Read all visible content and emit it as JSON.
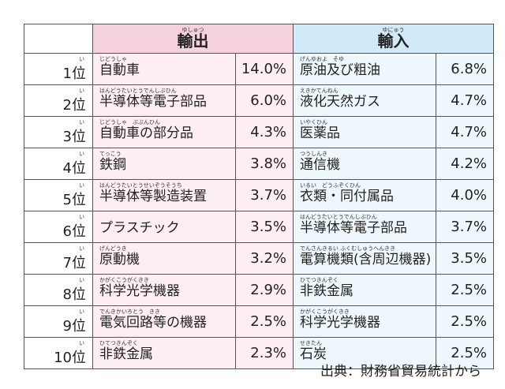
{
  "header": {
    "export": {
      "label": "輸出",
      "reading": "ゆしゅつ"
    },
    "import": {
      "label": "輸入",
      "reading": "ゆにゅう"
    }
  },
  "rows": [
    {
      "rank": "1位",
      "rank_reading": "い",
      "export": {
        "name": "自動車",
        "reading": "じどうしゃ",
        "share": "14.0%"
      },
      "import": {
        "name": "原油及び粗油",
        "reading": "げんゆおよ　そゆ",
        "share": "6.8%"
      }
    },
    {
      "rank": "2位",
      "rank_reading": "い",
      "export": {
        "name": "半導体等電子部品",
        "reading": "はんどうたいとうでんしぶひん",
        "share": "6.0%"
      },
      "import": {
        "name": "液化天然ガス",
        "reading": "えきかてんねん",
        "share": "4.7%"
      }
    },
    {
      "rank": "3位",
      "rank_reading": "い",
      "export": {
        "name": "自動車の部分品",
        "reading": "じどうしゃ　ぶぶんひん",
        "share": "4.3%"
      },
      "import": {
        "name": "医薬品",
        "reading": "いやくひん",
        "share": "4.7%"
      }
    },
    {
      "rank": "4位",
      "rank_reading": "い",
      "export": {
        "name": "鉄鋼",
        "reading": "てっこう",
        "share": "3.8%"
      },
      "import": {
        "name": "通信機",
        "reading": "つうしんき",
        "share": "4.2%"
      }
    },
    {
      "rank": "5位",
      "rank_reading": "い",
      "export": {
        "name": "半導体等製造装置",
        "reading": "はんどうたいとうせいぞうそうち",
        "share": "3.7%"
      },
      "import": {
        "name": "衣類・同付属品",
        "reading": "いるい　どうふぞくひん",
        "share": "4.0%"
      }
    },
    {
      "rank": "6位",
      "rank_reading": "い",
      "export": {
        "name": "プラスチック",
        "share": "3.5%"
      },
      "import": {
        "name": "半導体等電子部品",
        "reading": "はんどうたいとうでんしぶひん",
        "share": "3.7%"
      }
    },
    {
      "rank": "7位",
      "rank_reading": "い",
      "export": {
        "name": "原動機",
        "reading": "げんどうき",
        "share": "3.2%"
      },
      "import": {
        "name": "電算機類(含周辺機器)",
        "reading": "でんさんきるい ふくむしゅうへんきき",
        "share": "3.5%"
      }
    },
    {
      "rank": "8位",
      "rank_reading": "い",
      "export": {
        "name": "科学光学機器",
        "reading": "かがくこうがくきき",
        "share": "2.9%"
      },
      "import": {
        "name": "非鉄金属",
        "reading": "ひてつきんぞく",
        "share": "2.5%"
      }
    },
    {
      "rank": "9位",
      "rank_reading": "い",
      "export": {
        "name": "電気回路等の機器",
        "reading": "でんきかいろとう　きき",
        "share": "2.5%"
      },
      "import": {
        "name": "科学光学機器",
        "reading": "かがくこうがくきき",
        "share": "2.5%"
      }
    },
    {
      "rank": "10位",
      "rank_reading": "い",
      "export": {
        "name": "非鉄金属",
        "reading": "ひてつきんぞく",
        "share": "2.3%"
      },
      "import": {
        "name": "石炭",
        "reading": "せきたん",
        "share": "2.5%"
      }
    }
  ],
  "source": "出典：財務省貿易統計から"
}
